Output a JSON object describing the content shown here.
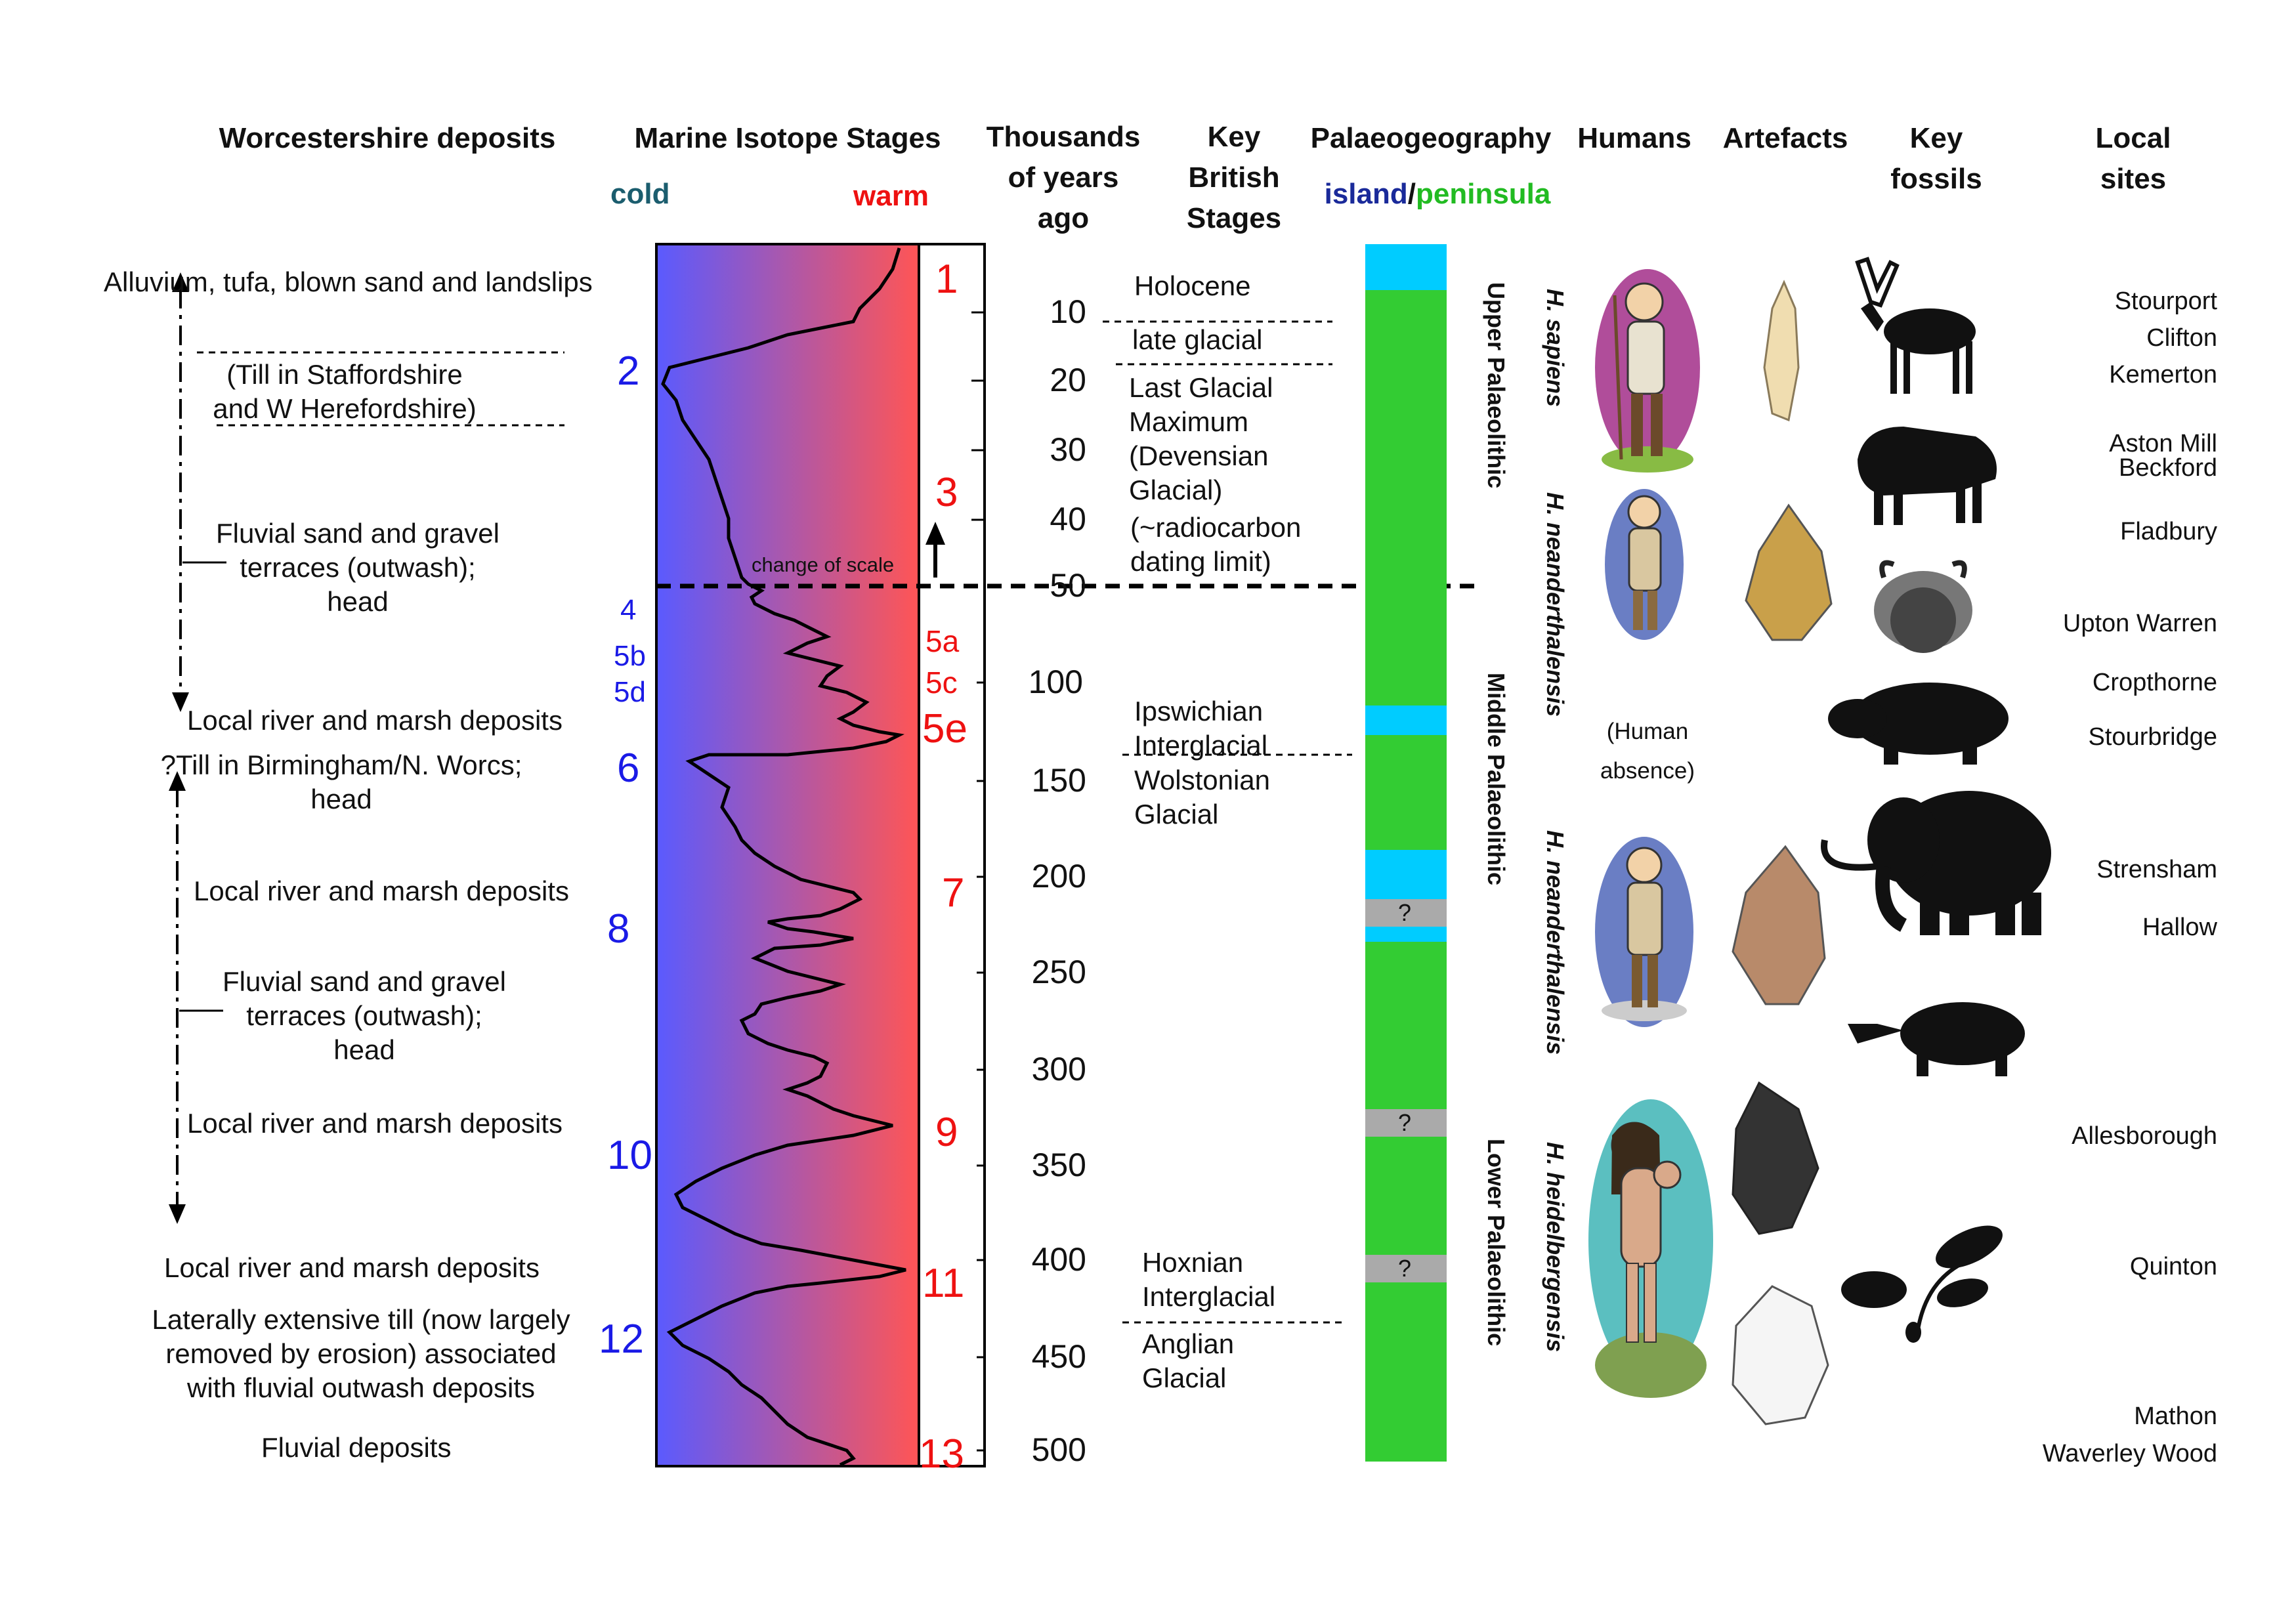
{
  "headers": {
    "deposits": "Worcestershire deposits",
    "mis": "Marine Isotope Stages",
    "cold": "cold",
    "warm": "warm",
    "age": "Thousands\nof years\nago",
    "stages": "Key\nBritish\nStages",
    "palaeo": "Palaeogeography",
    "island": "island",
    "slash": "/",
    "peninsula": "peninsula",
    "humans": "Humans",
    "artefacts": "Artefacts",
    "fossils": "Key\nfossils",
    "sites": "Local\nsites"
  },
  "deposits": {
    "d1": "Alluvium, tufa, blown sand and landslips",
    "d2": "(Till in Staffordshire\nand W Herefordshire)",
    "d3": "Fluvial sand and gravel\nterraces (outwash);\nhead",
    "d4": "Local river and marsh deposits",
    "d5": "?Till in Birmingham/N. Worcs;\nhead",
    "d6": "Local river and marsh deposits",
    "d7": "Fluvial sand and gravel\nterraces (outwash);\nhead",
    "d8": "Local river and marsh deposits",
    "d9": "Local river and marsh deposits",
    "d10": "Laterally extensive till (now largely\nremoved by erosion) associated\nwith fluvial outwash deposits",
    "d11": "Fluvial  deposits"
  },
  "cold_stages": {
    "s2": "2",
    "s4": "4",
    "s5b": "5b",
    "s5d": "5d",
    "s6": "6",
    "s8": "8",
    "s10": "10",
    "s12": "12"
  },
  "warm_stages": {
    "s1": "1",
    "s3": "3",
    "s5a": "5a",
    "s5c": "5c",
    "s5e": "5e",
    "s7": "7",
    "s9": "9",
    "s11": "11",
    "s13": "13"
  },
  "scale_note": "change of scale",
  "ages": [
    "10",
    "20",
    "30",
    "40",
    "50",
    "100",
    "150",
    "200",
    "250",
    "300",
    "350",
    "400",
    "450",
    "500"
  ],
  "british_stages": {
    "b1": "Holocene",
    "b2": "late glacial",
    "b3": "Last Glacial\nMaximum\n(Devensian\nGlacial)",
    "b4": "(~radiocarbon\n dating limit)",
    "b5": "Ipswichian\nInterglacial",
    "b6": "Wolstonian\nGlacial",
    "b7": "Hoxnian\nInterglacial",
    "b8": "Anglian\nGlacial"
  },
  "palaeo_marks": [
    "?",
    "?",
    "?"
  ],
  "periods": {
    "upper": "Upper Palaeolithic",
    "middle": "Middle Palaeolithic",
    "lower": "Lower Palaeolithic"
  },
  "species": {
    "sapiens": "H. sapiens",
    "neander1": "H. neanderthalensis",
    "neander2": "H. neanderthalensis",
    "heidel": "H. heidelbergensis"
  },
  "human_absence": "(Human\nabsence)",
  "sites": {
    "s1": "Stourport",
    "s2": "Clifton",
    "s3": "Kemerton",
    "s4": "Aston Mill\nBeckford",
    "s5": "Fladbury",
    "s6": "Upton Warren",
    "s7": "Cropthorne",
    "s8": "Stourbridge",
    "s9": "Strensham",
    "s10": "Hallow",
    "s11": "Allesborough",
    "s12": "Quinton",
    "s13": "Mathon",
    "s14": "Waverley Wood"
  },
  "fossil_icons": [
    "reindeer-icon",
    "bison-icon",
    "musk-ox-icon",
    "hippo-icon",
    "mammoth-icon",
    "rhino-icon",
    "oak-leaf-icon"
  ],
  "colors": {
    "cold": "#5a5aff",
    "warm": "#ff5555",
    "island": "#00ccff",
    "peninsula": "#33cc33",
    "unknown": "#aaaaaa"
  }
}
